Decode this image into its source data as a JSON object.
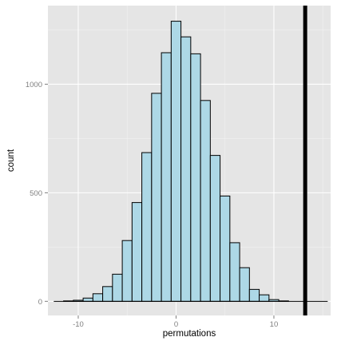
{
  "chart_data": {
    "type": "bar",
    "title": "",
    "xlabel": "permutations",
    "ylabel": "count",
    "xlim": [
      -13.1,
      15.8
    ],
    "ylim": [
      -65,
      1362
    ],
    "x_ticks": [
      -10,
      0,
      10
    ],
    "x_tick_labels": [
      "-10",
      "0",
      "10"
    ],
    "y_ticks": [
      0,
      500,
      1000
    ],
    "y_tick_labels": [
      "0",
      "500",
      "1000"
    ],
    "bin_width": 1,
    "bins": [
      {
        "x": -12,
        "count": 0
      },
      {
        "x": -11,
        "count": 2
      },
      {
        "x": -10,
        "count": 5
      },
      {
        "x": -9,
        "count": 15
      },
      {
        "x": -8,
        "count": 35
      },
      {
        "x": -7,
        "count": 68
      },
      {
        "x": -6,
        "count": 125
      },
      {
        "x": -5,
        "count": 280
      },
      {
        "x": -4,
        "count": 455
      },
      {
        "x": -3,
        "count": 685
      },
      {
        "x": -2,
        "count": 958
      },
      {
        "x": -1,
        "count": 1145
      },
      {
        "x": 0,
        "count": 1290
      },
      {
        "x": 1,
        "count": 1218
      },
      {
        "x": 2,
        "count": 1140
      },
      {
        "x": 3,
        "count": 925
      },
      {
        "x": 4,
        "count": 672
      },
      {
        "x": 5,
        "count": 485
      },
      {
        "x": 6,
        "count": 270
      },
      {
        "x": 7,
        "count": 155
      },
      {
        "x": 8,
        "count": 55
      },
      {
        "x": 9,
        "count": 30
      },
      {
        "x": 10,
        "count": 8
      },
      {
        "x": 11,
        "count": 2
      },
      {
        "x": 12,
        "count": 0
      },
      {
        "x": 13,
        "count": 0
      },
      {
        "x": 14,
        "count": 0
      },
      {
        "x": 15,
        "count": 0
      }
    ],
    "vline": {
      "x": 13.2,
      "color": "#000000"
    },
    "grid": true,
    "legend": "none",
    "colors": {
      "panel_background": "#e5e5e5",
      "grid_major": "#ffffff",
      "grid_minor": "#f2f2f2",
      "bar_fill": "#add8e6",
      "bar_outline": "#000000"
    }
  }
}
